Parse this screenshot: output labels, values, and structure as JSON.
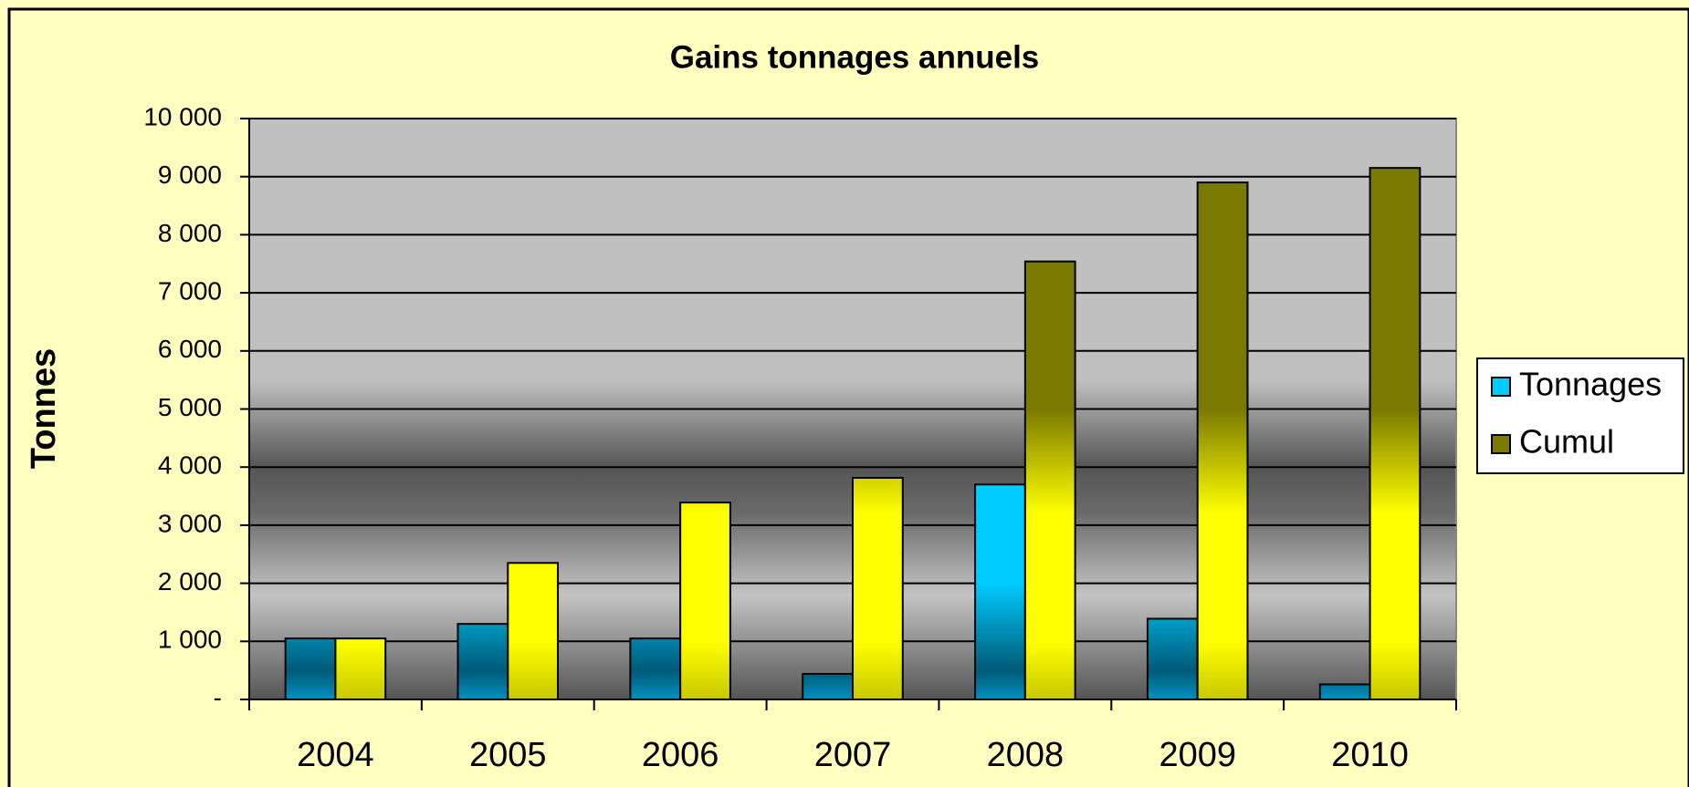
{
  "chart_data": {
    "type": "bar",
    "title": "Gains tonnages annuels",
    "y_label": "Tonnes",
    "categories": [
      "2004",
      "2005",
      "2006",
      "2007",
      "2008",
      "2009",
      "2010"
    ],
    "series": [
      {
        "name": "Tonnages",
        "color": "#00ccff",
        "values": [
          1050,
          1300,
          1050,
          440,
          3700,
          1390,
          260
        ]
      },
      {
        "name": "Cumul",
        "color": "#7a7a00",
        "values": [
          1050,
          2350,
          3390,
          3815,
          7540,
          8900,
          9150
        ]
      }
    ],
    "ylim": [
      0,
      10000
    ],
    "yticks": [
      {
        "value": 0,
        "label": "-"
      },
      {
        "value": 1000,
        "label": "1 000"
      },
      {
        "value": 2000,
        "label": "2 000"
      },
      {
        "value": 3000,
        "label": "3 000"
      },
      {
        "value": 4000,
        "label": "4 000"
      },
      {
        "value": 5000,
        "label": "5 000"
      },
      {
        "value": 6000,
        "label": "6 000"
      },
      {
        "value": 7000,
        "label": "7 000"
      },
      {
        "value": 8000,
        "label": "8 000"
      },
      {
        "value": 9000,
        "label": "9 000"
      },
      {
        "value": 10000,
        "label": "10 000"
      }
    ],
    "grid": true,
    "legend": "right"
  }
}
